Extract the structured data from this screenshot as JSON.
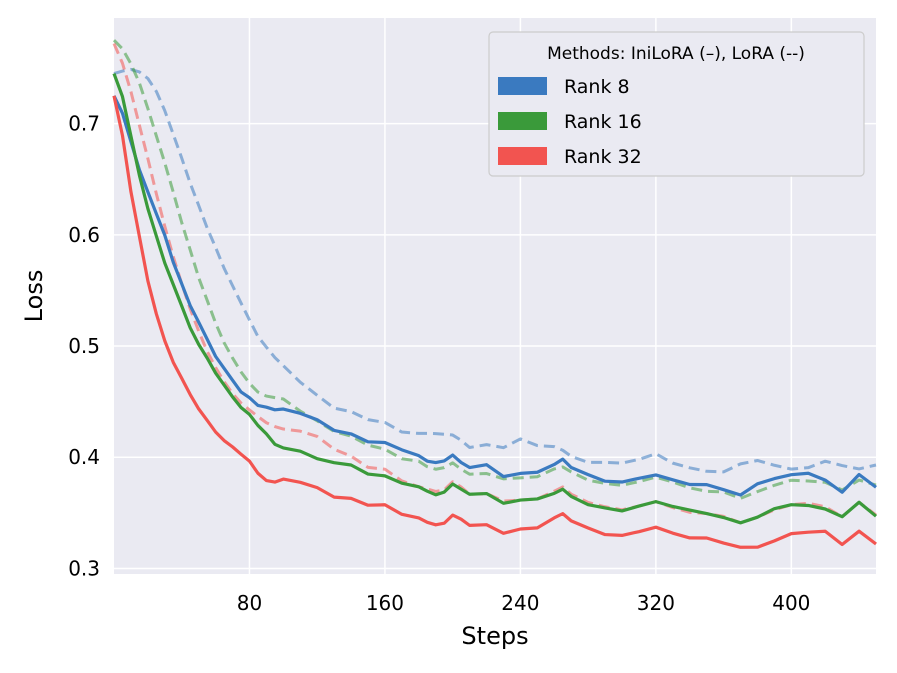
{
  "chart_data": {
    "type": "line",
    "title": "",
    "xlabel": "Steps",
    "ylabel": "Loss",
    "xlim": [
      0,
      450
    ],
    "ylim": [
      0.295,
      0.795
    ],
    "xticks": [
      80,
      160,
      240,
      320,
      400
    ],
    "xtick_labels": [
      "80",
      "160",
      "240",
      "320",
      "400"
    ],
    "yticks": [
      0.3,
      0.4,
      0.5,
      0.6,
      0.7
    ],
    "ytick_labels": [
      "0.3",
      "0.4",
      "0.5",
      "0.6",
      "0.7"
    ],
    "grid": true,
    "legend": {
      "title": "Methods: IniLoRA (–), LoRA (--)",
      "location": "top-right",
      "entries": [
        {
          "label": "Rank 8",
          "color": "#3a7ac0"
        },
        {
          "label": "Rank 16",
          "color": "#3a9a3a"
        },
        {
          "label": "Rank 32",
          "color": "#f25450"
        }
      ]
    },
    "series": [
      {
        "name": "Rank 8",
        "method": "IniLoRA",
        "style": "solid",
        "color": "#3a7ac0",
        "x": [
          0,
          5,
          10,
          15,
          20,
          25,
          30,
          35,
          40,
          45,
          50,
          55,
          60,
          65,
          70,
          75,
          80,
          85,
          90,
          95,
          100,
          110,
          120,
          130,
          140,
          150,
          160,
          170,
          180,
          185,
          190,
          195,
          200,
          205,
          210,
          220,
          230,
          240,
          250,
          260,
          265,
          270,
          280,
          290,
          300,
          310,
          320,
          330,
          340,
          350,
          360,
          370,
          380,
          390,
          400,
          410,
          420,
          430,
          440,
          450
        ],
        "y": [
          0.725,
          0.71,
          0.685,
          0.66,
          0.64,
          0.62,
          0.6,
          0.575,
          0.555,
          0.535,
          0.52,
          0.505,
          0.49,
          0.48,
          0.47,
          0.46,
          0.455,
          0.448,
          0.446,
          0.443,
          0.443,
          0.44,
          0.433,
          0.425,
          0.42,
          0.415,
          0.412,
          0.408,
          0.4,
          0.395,
          0.394,
          0.396,
          0.402,
          0.396,
          0.392,
          0.392,
          0.384,
          0.384,
          0.388,
          0.392,
          0.397,
          0.39,
          0.385,
          0.378,
          0.378,
          0.381,
          0.384,
          0.38,
          0.375,
          0.376,
          0.37,
          0.367,
          0.375,
          0.382,
          0.383,
          0.387,
          0.378,
          0.37,
          0.383,
          0.373
        ]
      },
      {
        "name": "Rank 16",
        "method": "IniLoRA",
        "style": "solid",
        "color": "#3a9a3a",
        "x": [
          0,
          5,
          10,
          15,
          20,
          25,
          30,
          35,
          40,
          45,
          50,
          55,
          60,
          65,
          70,
          75,
          80,
          85,
          90,
          95,
          100,
          110,
          120,
          130,
          140,
          150,
          160,
          170,
          180,
          185,
          190,
          195,
          200,
          205,
          210,
          220,
          230,
          240,
          250,
          260,
          265,
          270,
          280,
          290,
          300,
          310,
          320,
          330,
          340,
          350,
          360,
          370,
          380,
          390,
          400,
          410,
          420,
          430,
          440,
          450
        ],
        "y": [
          0.745,
          0.725,
          0.69,
          0.655,
          0.625,
          0.6,
          0.575,
          0.555,
          0.535,
          0.515,
          0.5,
          0.488,
          0.475,
          0.465,
          0.455,
          0.446,
          0.44,
          0.43,
          0.422,
          0.412,
          0.408,
          0.406,
          0.398,
          0.396,
          0.392,
          0.386,
          0.382,
          0.378,
          0.372,
          0.368,
          0.365,
          0.368,
          0.376,
          0.372,
          0.368,
          0.366,
          0.36,
          0.36,
          0.364,
          0.366,
          0.37,
          0.364,
          0.358,
          0.354,
          0.352,
          0.356,
          0.36,
          0.356,
          0.352,
          0.35,
          0.345,
          0.342,
          0.345,
          0.355,
          0.356,
          0.358,
          0.352,
          0.348,
          0.358,
          0.347
        ]
      },
      {
        "name": "Rank 32",
        "method": "IniLoRA",
        "style": "solid",
        "color": "#f25450",
        "x": [
          0,
          5,
          10,
          15,
          20,
          25,
          30,
          35,
          40,
          45,
          50,
          55,
          60,
          65,
          70,
          75,
          80,
          85,
          90,
          95,
          100,
          110,
          120,
          130,
          140,
          150,
          160,
          170,
          180,
          185,
          190,
          195,
          200,
          205,
          210,
          220,
          230,
          240,
          250,
          260,
          265,
          270,
          280,
          290,
          300,
          310,
          320,
          330,
          340,
          350,
          360,
          370,
          380,
          390,
          400,
          410,
          420,
          430,
          440,
          450
        ],
        "y": [
          0.725,
          0.69,
          0.64,
          0.6,
          0.56,
          0.53,
          0.505,
          0.485,
          0.47,
          0.455,
          0.442,
          0.432,
          0.422,
          0.415,
          0.41,
          0.404,
          0.398,
          0.387,
          0.38,
          0.378,
          0.38,
          0.378,
          0.372,
          0.365,
          0.362,
          0.358,
          0.356,
          0.35,
          0.344,
          0.34,
          0.338,
          0.34,
          0.348,
          0.345,
          0.34,
          0.338,
          0.333,
          0.334,
          0.338,
          0.344,
          0.348,
          0.342,
          0.337,
          0.33,
          0.33,
          0.333,
          0.337,
          0.332,
          0.327,
          0.328,
          0.322,
          0.32,
          0.318,
          0.326,
          0.33,
          0.334,
          0.332,
          0.323,
          0.332,
          0.322
        ]
      },
      {
        "name": "Rank 8",
        "method": "LoRA",
        "style": "dashed",
        "color": "#3a7ac0",
        "x": [
          0,
          5,
          10,
          15,
          20,
          25,
          30,
          35,
          40,
          45,
          50,
          55,
          60,
          65,
          70,
          75,
          80,
          85,
          90,
          95,
          100,
          110,
          120,
          130,
          140,
          150,
          160,
          170,
          180,
          185,
          190,
          195,
          200,
          205,
          210,
          220,
          230,
          240,
          250,
          260,
          265,
          270,
          280,
          290,
          300,
          310,
          320,
          330,
          340,
          350,
          360,
          370,
          380,
          390,
          400,
          410,
          420,
          430,
          440,
          450
        ],
        "y": [
          0.745,
          0.748,
          0.75,
          0.748,
          0.742,
          0.73,
          0.712,
          0.69,
          0.668,
          0.645,
          0.625,
          0.605,
          0.588,
          0.57,
          0.555,
          0.54,
          0.525,
          0.51,
          0.5,
          0.49,
          0.482,
          0.468,
          0.455,
          0.445,
          0.44,
          0.435,
          0.43,
          0.424,
          0.42,
          0.42,
          0.42,
          0.42,
          0.42,
          0.416,
          0.41,
          0.41,
          0.41,
          0.415,
          0.412,
          0.408,
          0.405,
          0.4,
          0.396,
          0.395,
          0.395,
          0.398,
          0.403,
          0.395,
          0.39,
          0.388,
          0.386,
          0.395,
          0.396,
          0.394,
          0.388,
          0.392,
          0.395,
          0.394,
          0.388,
          0.393
        ]
      },
      {
        "name": "Rank 16",
        "method": "LoRA",
        "style": "dashed",
        "color": "#3a9a3a",
        "x": [
          0,
          5,
          10,
          15,
          20,
          25,
          30,
          35,
          40,
          45,
          50,
          55,
          60,
          65,
          70,
          75,
          80,
          85,
          90,
          95,
          100,
          110,
          120,
          130,
          140,
          150,
          160,
          170,
          180,
          185,
          190,
          195,
          200,
          205,
          210,
          220,
          230,
          240,
          250,
          260,
          265,
          270,
          280,
          290,
          300,
          310,
          320,
          330,
          340,
          350,
          360,
          370,
          380,
          390,
          400,
          410,
          420,
          430,
          440,
          450
        ],
        "y": [
          0.775,
          0.768,
          0.755,
          0.738,
          0.715,
          0.69,
          0.665,
          0.638,
          0.61,
          0.585,
          0.56,
          0.54,
          0.52,
          0.503,
          0.49,
          0.478,
          0.468,
          0.46,
          0.456,
          0.454,
          0.452,
          0.442,
          0.432,
          0.424,
          0.418,
          0.412,
          0.406,
          0.4,
          0.395,
          0.39,
          0.388,
          0.39,
          0.395,
          0.39,
          0.386,
          0.384,
          0.382,
          0.38,
          0.384,
          0.388,
          0.39,
          0.386,
          0.38,
          0.376,
          0.375,
          0.378,
          0.382,
          0.378,
          0.372,
          0.37,
          0.368,
          0.364,
          0.368,
          0.376,
          0.378,
          0.38,
          0.376,
          0.372,
          0.378,
          0.375
        ]
      },
      {
        "name": "Rank 32",
        "method": "LoRA",
        "style": "dashed",
        "color": "#f25450",
        "x": [
          0,
          5,
          10,
          15,
          20,
          25,
          30,
          35,
          40,
          45,
          50,
          55,
          60,
          65,
          70,
          75,
          80,
          85,
          90,
          95,
          100,
          110,
          120,
          130,
          140,
          150,
          160,
          170,
          180,
          185,
          190,
          195,
          200,
          205,
          210,
          220,
          230,
          240,
          250,
          260,
          265,
          270,
          280,
          290,
          300,
          310,
          320,
          330,
          340,
          350,
          360,
          370,
          380,
          390,
          400,
          410,
          420,
          430,
          440,
          450
        ],
        "y": [
          0.772,
          0.755,
          0.73,
          0.7,
          0.67,
          0.638,
          0.608,
          0.58,
          0.555,
          0.532,
          0.512,
          0.494,
          0.48,
          0.468,
          0.458,
          0.45,
          0.444,
          0.438,
          0.432,
          0.428,
          0.425,
          0.424,
          0.418,
          0.408,
          0.4,
          0.392,
          0.388,
          0.38,
          0.372,
          0.37,
          0.368,
          0.37,
          0.378,
          0.374,
          0.368,
          0.366,
          0.362,
          0.36,
          0.364,
          0.368,
          0.372,
          0.366,
          0.36,
          0.355,
          0.353,
          0.356,
          0.36,
          0.355,
          0.35,
          0.35,
          0.346,
          0.342,
          0.345,
          0.354,
          0.356,
          0.36,
          0.354,
          0.348,
          0.358,
          0.348
        ]
      }
    ]
  }
}
